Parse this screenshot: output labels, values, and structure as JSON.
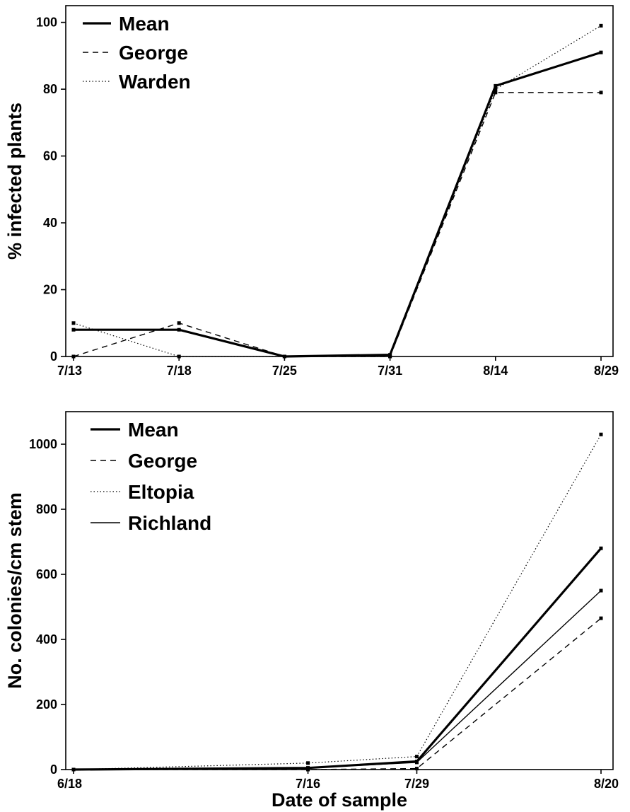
{
  "chart_data": [
    {
      "type": "line",
      "title": "",
      "xlabel": "",
      "ylabel": "% infected plants",
      "categories": [
        "7/13",
        "7/18",
        "7/25",
        "7/31",
        "8/14",
        "8/29"
      ],
      "ylim": [
        0,
        105
      ],
      "yticks": [
        0,
        20,
        40,
        60,
        80,
        100
      ],
      "legend_position": "top-left",
      "series": [
        {
          "name": "Mean",
          "style": "solid-thick",
          "values": [
            8,
            8,
            0,
            0.5,
            81,
            91
          ]
        },
        {
          "name": "George",
          "style": "dashed",
          "values": [
            0,
            10,
            0,
            0,
            79,
            79
          ]
        },
        {
          "name": "Warden",
          "style": "dotted",
          "values": [
            10,
            0,
            0,
            0,
            80,
            99
          ]
        }
      ]
    },
    {
      "type": "line",
      "title": "",
      "xlabel": "Date of sample",
      "ylabel": "No. colonies/cm stem",
      "x": [
        "6/18",
        "7/16",
        "7/29",
        "8/20"
      ],
      "x_positions_days": [
        0,
        28,
        41,
        63
      ],
      "ylim": [
        0,
        1100
      ],
      "yticks": [
        0,
        200,
        400,
        600,
        800,
        1000
      ],
      "legend_position": "top-left",
      "series": [
        {
          "name": "Mean",
          "style": "solid-thick",
          "values": [
            0,
            5,
            25,
            680
          ]
        },
        {
          "name": "George",
          "style": "dashed",
          "values": [
            0,
            0,
            3,
            465
          ]
        },
        {
          "name": "Eltopia",
          "style": "dotted",
          "values": [
            0,
            20,
            40,
            1030
          ]
        },
        {
          "name": "Richland",
          "style": "solid-thin",
          "values": [
            0,
            5,
            22,
            550
          ]
        }
      ]
    }
  ]
}
